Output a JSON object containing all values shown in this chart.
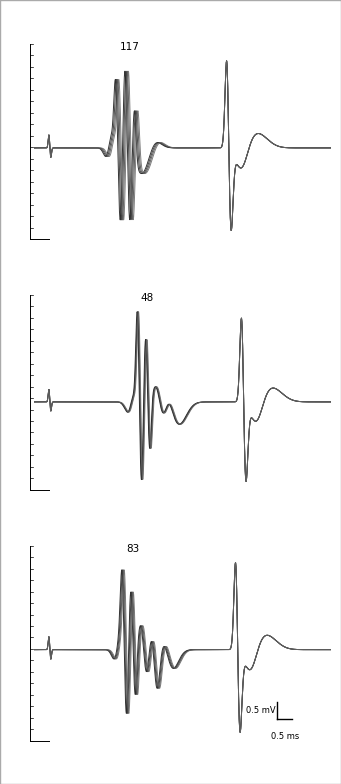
{
  "panel_labels": [
    "117",
    "48",
    "83"
  ],
  "n_traces": 4,
  "line_color": "#111111",
  "line_alpha": 0.85,
  "line_width": 0.7,
  "fig_width": 3.41,
  "fig_height": 7.84,
  "scale_label_mV": "0.5 mV",
  "scale_label_ms": "0.5 ms",
  "border_color": "#aaaaaa",
  "bg_color": "#ffffff",
  "outer_bg": "#f2f2f2"
}
